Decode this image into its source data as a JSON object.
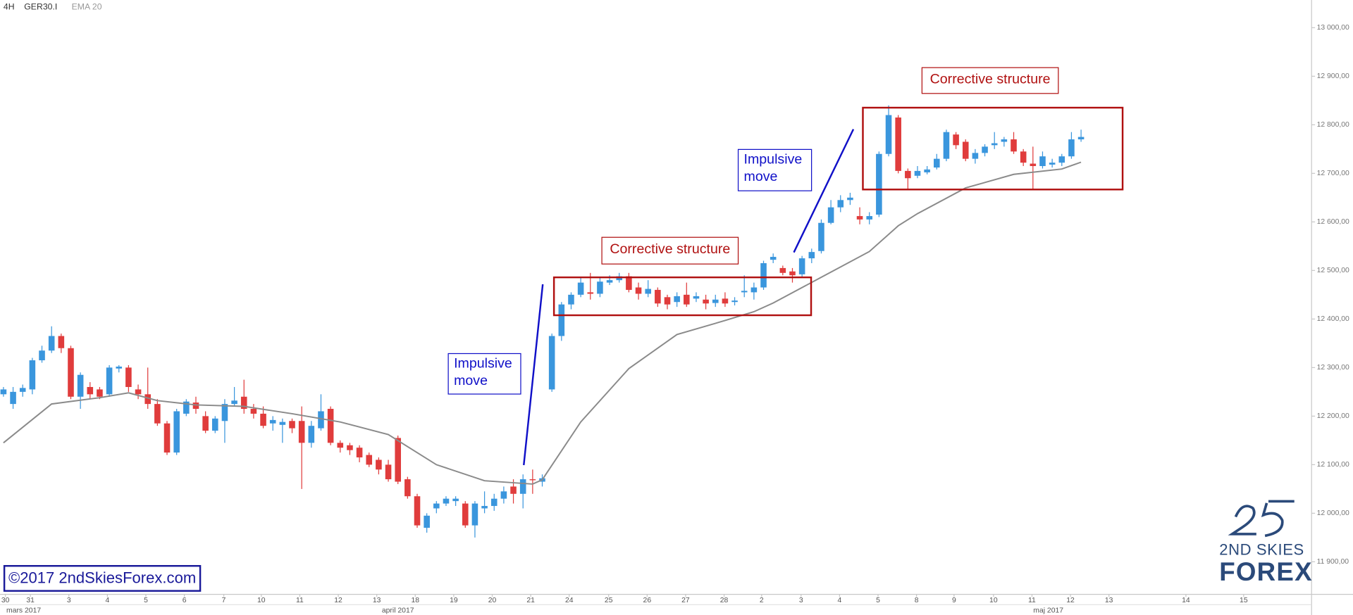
{
  "header": {
    "timeframe": "4H",
    "symbol": "GER30.I"
  },
  "chart_data": {
    "type": "candlestick",
    "x": [
      0,
      1,
      2,
      3,
      4,
      5,
      6,
      7,
      8,
      9,
      10,
      11,
      12,
      13,
      14,
      15,
      16,
      17,
      18,
      19,
      20,
      21,
      22,
      23,
      24,
      25,
      26,
      27,
      28,
      29,
      30,
      31,
      32,
      33,
      34,
      35,
      36,
      37,
      38,
      39,
      40,
      41,
      42,
      43,
      44,
      45,
      46,
      47,
      48,
      49,
      50,
      51,
      52,
      53,
      54,
      55,
      56,
      57,
      58,
      59,
      60,
      61,
      62,
      63,
      64,
      65,
      66,
      67,
      68,
      69,
      70,
      71,
      72,
      73,
      74,
      75,
      76,
      77,
      78,
      79,
      80,
      81,
      82,
      83,
      84,
      85,
      86,
      87,
      88,
      89,
      90,
      91,
      92,
      93,
      94,
      95,
      96,
      97,
      98,
      99,
      100,
      101,
      102,
      103,
      104,
      105,
      106,
      107,
      108,
      109,
      110,
      111,
      112
    ],
    "open": [
      12245,
      12225,
      12250,
      12255,
      12315,
      12335,
      12365,
      12340,
      12240,
      12260,
      12255,
      12245,
      12298,
      12300,
      12255,
      12245,
      12225,
      12185,
      12125,
      12205,
      12228,
      12200,
      12170,
      12190,
      12225,
      12240,
      12215,
      12205,
      12185,
      12182,
      12190,
      12190,
      12145,
      12175,
      12215,
      12145,
      12140,
      12135,
      12120,
      12110,
      12100,
      12155,
      12070,
      12035,
      11970,
      12010,
      12020,
      12025,
      12020,
      11975,
      12010,
      12015,
      12030,
      12055,
      12040,
      12070,
      12065,
      12255,
      12365,
      12430,
      12450,
      12455,
      12452,
      12475,
      12480,
      12488,
      12465,
      12452,
      12460,
      12445,
      12435,
      12450,
      12442,
      12440,
      12433,
      12442,
      12435,
      12455,
      12455,
      12465,
      12522,
      12505,
      12498,
      12492,
      12525,
      12540,
      12598,
      12630,
      12645,
      12612,
      12605,
      12615,
      12740,
      12815,
      12705,
      12695,
      12702,
      12712,
      12730,
      12780,
      12765,
      12730,
      12742,
      12758,
      12765,
      12770,
      12745,
      12720,
      12715,
      12718,
      12722,
      12735,
      12770
    ],
    "high": [
      12260,
      12260,
      12265,
      12320,
      12345,
      12385,
      12370,
      12345,
      12290,
      12270,
      12260,
      12305,
      12305,
      12305,
      12265,
      12300,
      12235,
      12190,
      12215,
      12235,
      12240,
      12210,
      12200,
      12235,
      12260,
      12275,
      12225,
      12220,
      12200,
      12195,
      12195,
      12220,
      12190,
      12245,
      12220,
      12150,
      12145,
      12140,
      12125,
      12115,
      12110,
      12160,
      12075,
      12040,
      12000,
      12025,
      12035,
      12035,
      12025,
      12025,
      12045,
      12040,
      12055,
      12070,
      12080,
      12090,
      12080,
      12370,
      12435,
      12455,
      12485,
      12495,
      12485,
      12490,
      12495,
      12495,
      12475,
      12480,
      12465,
      12450,
      12455,
      12475,
      12455,
      12450,
      12450,
      12455,
      12445,
      12490,
      12475,
      12520,
      12535,
      12510,
      12505,
      12530,
      12545,
      12605,
      12645,
      12655,
      12660,
      12630,
      12620,
      12745,
      12840,
      12820,
      12710,
      12715,
      12715,
      12740,
      12790,
      12785,
      12770,
      12750,
      12760,
      12785,
      12775,
      12785,
      12750,
      12755,
      12745,
      12730,
      12740,
      12785,
      12790
    ],
    "low": [
      12240,
      12215,
      12240,
      12245,
      12310,
      12330,
      12330,
      12235,
      12215,
      12235,
      12235,
      12240,
      12290,
      12250,
      12235,
      12215,
      12180,
      12120,
      12120,
      12200,
      12205,
      12165,
      12165,
      12145,
      12220,
      12205,
      12195,
      12175,
      12170,
      12145,
      12165,
      12050,
      12135,
      12170,
      12140,
      12125,
      12120,
      12105,
      12095,
      12080,
      12065,
      12060,
      12030,
      11970,
      11960,
      12000,
      12015,
      12015,
      11970,
      11950,
      12000,
      12005,
      12020,
      12020,
      12010,
      12040,
      12055,
      12250,
      12355,
      12420,
      12445,
      12440,
      12445,
      12470,
      12475,
      12455,
      12440,
      12445,
      12425,
      12420,
      12425,
      12425,
      12435,
      12420,
      12425,
      12425,
      12428,
      12445,
      12440,
      12460,
      12515,
      12490,
      12475,
      12485,
      12515,
      12535,
      12595,
      12620,
      12635,
      12595,
      12595,
      12610,
      12735,
      12700,
      12665,
      12690,
      12698,
      12708,
      12725,
      12750,
      12725,
      12720,
      12735,
      12750,
      12755,
      12740,
      12715,
      12665,
      12710,
      12712,
      12715,
      12730,
      12765
    ],
    "close": [
      12255,
      12250,
      12258,
      12315,
      12335,
      12365,
      12340,
      12240,
      12285,
      12245,
      12240,
      12300,
      12302,
      12260,
      12245,
      12225,
      12185,
      12125,
      12210,
      12230,
      12215,
      12170,
      12195,
      12225,
      12232,
      12215,
      12205,
      12180,
      12192,
      12188,
      12175,
      12145,
      12180,
      12210,
      12145,
      12135,
      12130,
      12115,
      12100,
      12090,
      12070,
      12065,
      12035,
      11975,
      11995,
      12020,
      12030,
      12030,
      11975,
      12020,
      12015,
      12030,
      12045,
      12040,
      12070,
      12068,
      12072,
      12365,
      12430,
      12450,
      12475,
      12452,
      12477,
      12480,
      12488,
      12460,
      12452,
      12462,
      12432,
      12430,
      12447,
      12430,
      12447,
      12432,
      12440,
      12432,
      12438,
      12458,
      12465,
      12515,
      12528,
      12495,
      12490,
      12525,
      12538,
      12598,
      12630,
      12645,
      12650,
      12605,
      12612,
      12740,
      12820,
      12705,
      12690,
      12705,
      12708,
      12730,
      12785,
      12758,
      12730,
      12742,
      12755,
      12762,
      12770,
      12745,
      12722,
      12715,
      12735,
      12722,
      12735,
      12770,
      12775
    ],
    "up_color": "#3a96dd",
    "down_color": "#e03c3c",
    "ema": {
      "name": "EMA 20",
      "color": "#8a8a8a",
      "x": [
        0,
        5,
        10,
        13,
        16,
        20,
        25,
        30,
        35,
        40,
        45,
        50,
        55,
        56,
        60,
        65,
        70,
        75,
        78,
        80,
        85,
        90,
        93,
        95,
        100,
        105,
        110,
        112
      ],
      "values": [
        12145,
        12225,
        12238,
        12248,
        12232,
        12223,
        12220,
        12205,
        12188,
        12162,
        12100,
        12067,
        12060,
        12069,
        12188,
        12298,
        12368,
        12397,
        12415,
        12433,
        12486,
        12539,
        12592,
        12617,
        12670,
        12698,
        12709,
        12723
      ]
    },
    "xlim": [
      -0.36,
      135.96
    ],
    "ylim": [
      11833,
      13057
    ],
    "yticks": [
      {
        "value": 11900,
        "label": "11 900,00"
      },
      {
        "value": 12000,
        "label": "12 000,00"
      },
      {
        "value": 12100,
        "label": "12 100,00"
      },
      {
        "value": 12200,
        "label": "12 200,00"
      },
      {
        "value": 12300,
        "label": "12 300,00"
      },
      {
        "value": 12400,
        "label": "12 400,00"
      },
      {
        "value": 12500,
        "label": "12 500,00"
      },
      {
        "value": 12600,
        "label": "12 600,00"
      },
      {
        "value": 12700,
        "label": "12 700,00"
      },
      {
        "value": 12800,
        "label": "12 800,00"
      },
      {
        "value": 12900,
        "label": "12 900,00"
      },
      {
        "value": 13000,
        "label": "13 000,00"
      }
    ],
    "xticks": [
      {
        "value": 0.2,
        "label": "30"
      },
      {
        "value": 2.8,
        "label": "31"
      },
      {
        "value": 6.8,
        "label": "3"
      },
      {
        "value": 10.8,
        "label": "4"
      },
      {
        "value": 14.8,
        "label": "5"
      },
      {
        "value": 18.8,
        "label": "6"
      },
      {
        "value": 22.9,
        "label": "7"
      },
      {
        "value": 26.8,
        "label": "10"
      },
      {
        "value": 30.8,
        "label": "11"
      },
      {
        "value": 34.8,
        "label": "12"
      },
      {
        "value": 38.8,
        "label": "13"
      },
      {
        "value": 42.8,
        "label": "18"
      },
      {
        "value": 46.8,
        "label": "19"
      },
      {
        "value": 50.8,
        "label": "20"
      },
      {
        "value": 54.8,
        "label": "21"
      },
      {
        "value": 58.8,
        "label": "24"
      },
      {
        "value": 62.9,
        "label": "25"
      },
      {
        "value": 66.9,
        "label": "26"
      },
      {
        "value": 70.9,
        "label": "27"
      },
      {
        "value": 74.9,
        "label": "28"
      },
      {
        "value": 78.8,
        "label": "2"
      },
      {
        "value": 82.9,
        "label": "3"
      },
      {
        "value": 86.9,
        "label": "4"
      },
      {
        "value": 90.9,
        "label": "5"
      },
      {
        "value": 94.9,
        "label": "8"
      },
      {
        "value": 98.8,
        "label": "9"
      },
      {
        "value": 102.9,
        "label": "10"
      },
      {
        "value": 106.9,
        "label": "11"
      },
      {
        "value": 110.9,
        "label": "12"
      },
      {
        "value": 114.9,
        "label": "13"
      },
      {
        "value": 122.9,
        "label": "14"
      },
      {
        "value": 128.9,
        "label": "15"
      }
    ],
    "months": [
      {
        "value": 2.1,
        "label": "mars 2017"
      },
      {
        "value": 41,
        "label": "april 2017"
      },
      {
        "value": 108.6,
        "label": "maj 2017"
      }
    ]
  },
  "annotations": [
    "Impulsive move",
    "Corrective structure",
    "Impulsive move",
    "Corrective structure"
  ],
  "watermark": "©2017 2ndSkiesForex.com",
  "logo": {
    "line1": "2ND SKIES",
    "line2": "FOREX"
  }
}
